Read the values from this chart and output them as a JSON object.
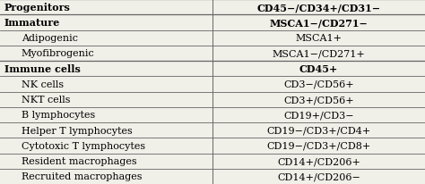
{
  "col1_header": "Progenitors",
  "col2_header": "CD45−/CD34+/CD31−",
  "rows": [
    [
      "Immature",
      "MSCA1−/CD271−"
    ],
    [
      "Adipogenic",
      "MSCA1+"
    ],
    [
      "Myofibrogenic",
      "MSCA1−/CD271+"
    ],
    [
      "Immune cells",
      "CD45+"
    ],
    [
      "NK cells",
      "CD3−/CD56+"
    ],
    [
      "NKT cells",
      "CD3+/CD56+"
    ],
    [
      "B lymphocytes",
      "CD19+/CD3−"
    ],
    [
      "Helper T lymphocytes",
      "CD19−/CD3+/CD4+"
    ],
    [
      "Cytotoxic T lymphocytes",
      "CD19−/CD3+/CD8+"
    ],
    [
      "Resident macrophages",
      "CD14+/CD206+"
    ],
    [
      "Recruited macrophages",
      "CD14+/CD206−"
    ]
  ],
  "bold_rows": [
    0,
    3
  ],
  "bg_color": "#f0efe8",
  "line_color": "#666666",
  "text_color": "#000000",
  "font_size": 8.0,
  "col_split": 0.5,
  "thick_after_rows": [
    3
  ]
}
